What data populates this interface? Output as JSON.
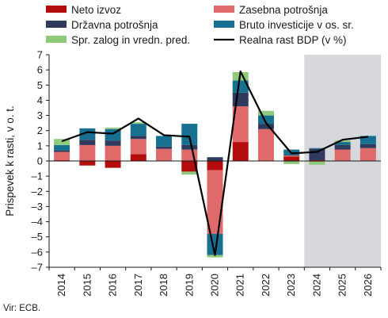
{
  "chart_data": {
    "type": "bar",
    "stacked": true,
    "ylabel": "Prispevek k rasti, v o. t.",
    "ylim": [
      -7,
      7
    ],
    "yticks": [
      -7,
      -6,
      -5,
      -4,
      -3,
      -2,
      -1,
      0,
      1,
      2,
      3,
      4,
      5,
      6,
      7
    ],
    "grid": false,
    "legend_placement": "top",
    "projection_shaded_from": "2024",
    "categories": [
      "2014",
      "2015",
      "2016",
      "2017",
      "2018",
      "2019",
      "2020",
      "2021",
      "2022",
      "2023",
      "2024",
      "2025",
      "2026"
    ],
    "series": [
      {
        "name": "Neto izvoz",
        "kind": "bar",
        "color": "#b30d0d",
        "values": [
          0.05,
          -0.3,
          -0.45,
          0.45,
          0.0,
          -0.7,
          -0.6,
          1.25,
          0.0,
          0.3,
          0.05,
          0.0,
          0.0
        ]
      },
      {
        "name": "Zasebna potrošnja",
        "kind": "bar",
        "color": "#e06a6a",
        "values": [
          0.55,
          1.05,
          1.0,
          1.0,
          0.8,
          0.75,
          -4.2,
          2.35,
          2.1,
          0.05,
          -0.05,
          0.75,
          0.85
        ]
      },
      {
        "name": "Državna potrošnja",
        "kind": "bar",
        "color": "#2f3a5c",
        "values": [
          0.1,
          0.35,
          0.35,
          0.2,
          0.15,
          0.3,
          0.25,
          0.9,
          0.35,
          0.05,
          0.75,
          0.3,
          0.25
        ]
      },
      {
        "name": "Bruto investicije v os. sr.",
        "kind": "bar",
        "color": "#17708f",
        "values": [
          0.35,
          0.75,
          0.75,
          0.8,
          0.7,
          1.4,
          -1.4,
          0.8,
          0.55,
          0.35,
          0.05,
          0.2,
          0.55
        ]
      },
      {
        "name": "Spr. zalog in vredn. pred.",
        "kind": "bar",
        "color": "#8fc97a",
        "values": [
          0.4,
          0.0,
          0.1,
          0.1,
          0.0,
          -0.2,
          -0.15,
          0.55,
          0.3,
          -0.2,
          -0.2,
          0.1,
          0.0
        ]
      },
      {
        "name": "Realna rast BDP (v %)",
        "kind": "line",
        "color": "#000000",
        "values": [
          1.3,
          1.9,
          1.8,
          2.8,
          1.7,
          1.6,
          -6.2,
          5.9,
          2.5,
          0.5,
          0.6,
          1.4,
          1.6
        ]
      }
    ],
    "source": "Vir: ECB."
  }
}
